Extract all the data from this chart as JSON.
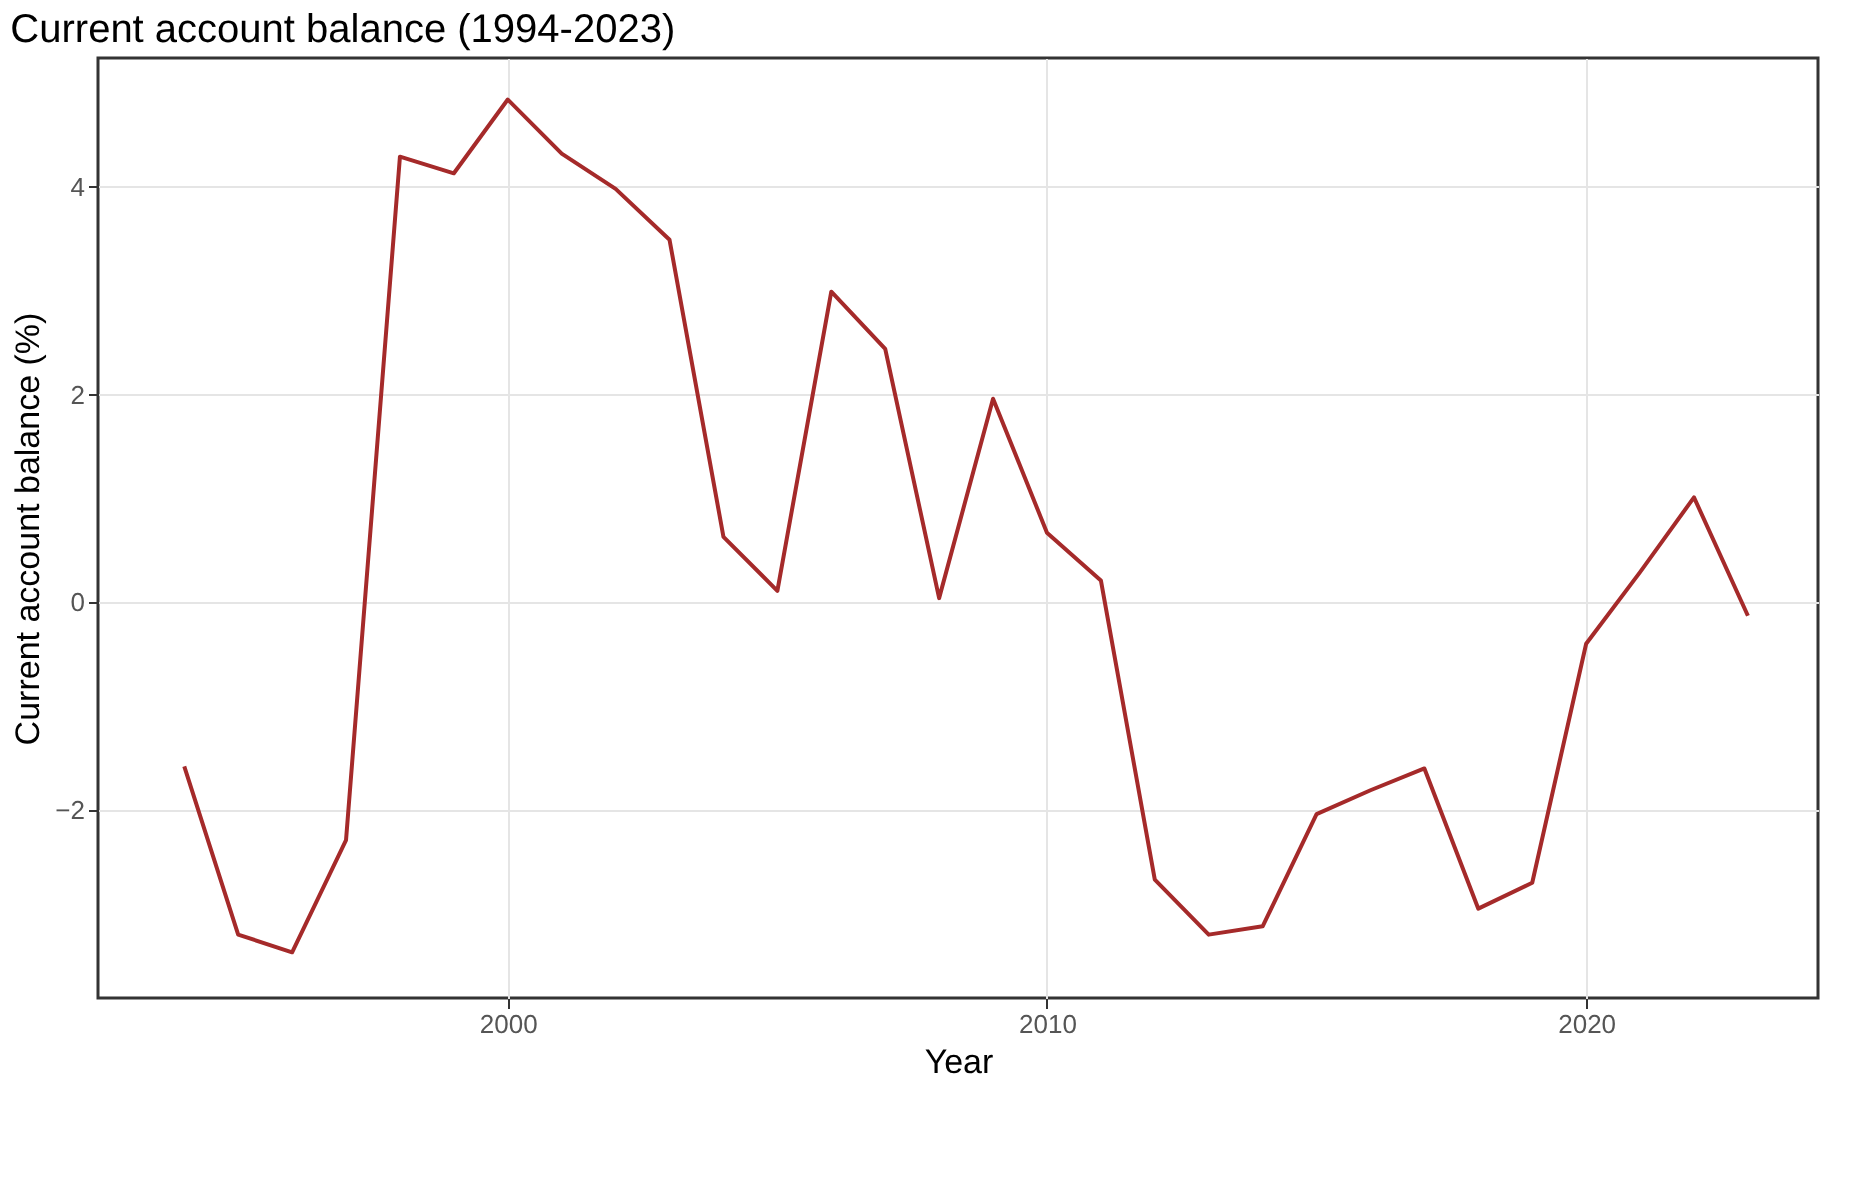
{
  "chart_data": {
    "type": "line",
    "title": "Current account balance (1994-2023)",
    "xlabel": "Year",
    "ylabel": "Current account balance (%)",
    "x": [
      1994,
      1995,
      1996,
      1997,
      1998,
      1999,
      2000,
      2001,
      2002,
      2003,
      2004,
      2005,
      2006,
      2007,
      2008,
      2009,
      2010,
      2011,
      2012,
      2013,
      2014,
      2015,
      2016,
      2017,
      2018,
      2019,
      2020,
      2021,
      2022,
      2023
    ],
    "series": [
      {
        "color": "#a52a2a",
        "values": [
          -1.58,
          -3.2,
          -3.37,
          -2.29,
          4.29,
          4.13,
          4.84,
          4.32,
          3.98,
          3.49,
          0.63,
          0.11,
          2.99,
          2.44,
          0.04,
          1.96,
          0.67,
          0.21,
          -2.67,
          -3.2,
          -3.12,
          -2.04,
          -1.81,
          -1.6,
          -2.95,
          -2.7,
          -0.4,
          0.29,
          1.01,
          -0.13
        ]
      }
    ],
    "xlim": [
      1992.4,
      2024.3
    ],
    "ylim": [
      -3.81,
      5.24
    ],
    "xticks": [
      2000,
      2010,
      2020
    ],
    "yticks": [
      -2,
      0,
      2,
      4
    ],
    "grid": true,
    "legend": false,
    "marker": "none",
    "line_style": "solid"
  }
}
